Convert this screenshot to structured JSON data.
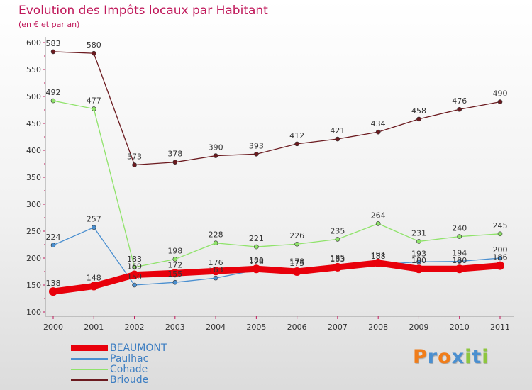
{
  "chart_data": {
    "type": "line",
    "title": "Evolution des Impôts locaux par Habitant",
    "subtitle": "(en € et par an)",
    "xlabel": "",
    "ylabel": "",
    "x": [
      "2000",
      "2001",
      "2002",
      "2003",
      "2004",
      "2005",
      "2006",
      "2007",
      "2008",
      "2009",
      "2010",
      "2011"
    ],
    "ylim": [
      100,
      600
    ],
    "yticks": [
      100,
      150,
      200,
      250,
      300,
      350,
      400,
      450,
      500,
      550,
      600
    ],
    "grid": false,
    "legend_position": "bottom-left",
    "series": [
      {
        "name": "BEAUMONT",
        "color": "#e8000b",
        "values": [
          138,
          148,
          169,
          172,
          176,
          180,
          175,
          183,
          191,
          180,
          180,
          186
        ],
        "labels": [
          "138",
          "148",
          "169",
          "172",
          "176",
          "180",
          "175",
          "183",
          "191",
          "180",
          "180",
          "186"
        ]
      },
      {
        "name": "Paulhac",
        "color": "#4a8fd0",
        "values": [
          224,
          257,
          150,
          155,
          163,
          178,
          178,
          185,
          188,
          193,
          194,
          200
        ],
        "labels": [
          "224",
          "257",
          "150",
          "155",
          "163",
          "178",
          "178",
          "185",
          "188",
          "193",
          "194",
          "200"
        ]
      },
      {
        "name": "Cohade",
        "color": "#8fe36a",
        "values": [
          492,
          477,
          183,
          198,
          228,
          221,
          226,
          235,
          264,
          231,
          240,
          245
        ],
        "labels": [
          "492",
          "477",
          "183",
          "198",
          "228",
          "221",
          "226",
          "235",
          "264",
          "231",
          "240",
          "245"
        ]
      },
      {
        "name": "Brioude",
        "color": "#6b1a1f",
        "values": [
          583,
          580,
          373,
          378,
          390,
          393,
          412,
          421,
          434,
          458,
          476,
          490
        ],
        "labels": [
          "583",
          "580",
          "373",
          "378",
          "390",
          "393",
          "412",
          "421",
          "434",
          "458",
          "476",
          "490"
        ]
      }
    ]
  },
  "logo": {
    "letters": [
      {
        "ch": "P",
        "color": "#f07d1a"
      },
      {
        "ch": "r",
        "color": "#4a8fd0"
      },
      {
        "ch": "o",
        "color": "#f07d1a"
      },
      {
        "ch": "x",
        "color": "#4a8fd0"
      },
      {
        "ch": "i",
        "color": "#8ec63f"
      },
      {
        "ch": "t",
        "color": "#4a8fd0"
      },
      {
        "ch": "i",
        "color": "#8ec63f"
      }
    ]
  }
}
